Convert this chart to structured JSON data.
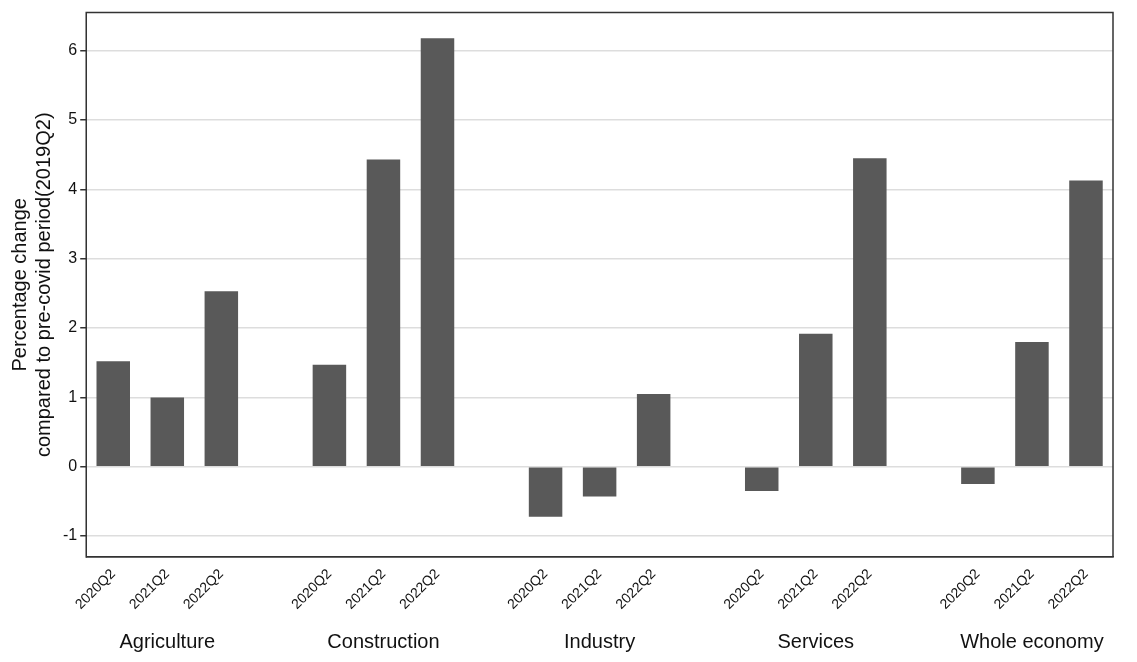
{
  "chart_data": {
    "type": "bar",
    "ylabel": "Percentage change\ncompared to pre-covid period(2019Q2)",
    "categories": [
      "2020Q2",
      "2021Q2",
      "2022Q2",
      null,
      "2020Q2",
      "2021Q2",
      "2022Q2",
      null,
      "2020Q2",
      "2021Q2",
      "2022Q2",
      null,
      "2020Q2",
      "2021Q2",
      "2022Q2",
      null,
      "2020Q2",
      "2021Q2",
      "2022Q2"
    ],
    "values": [
      1.52,
      1.0,
      2.53,
      null,
      1.47,
      4.43,
      6.18,
      null,
      -0.72,
      -0.43,
      1.05,
      null,
      -0.35,
      1.92,
      4.45,
      null,
      -0.25,
      1.8,
      4.13
    ],
    "color": "#595959",
    "annotations": [
      "Agriculture",
      "Construction",
      "Industry",
      "Services",
      "Whole economy"
    ],
    "ylim": [
      -1.3,
      6.55
    ],
    "yticks": [
      -1,
      0,
      1,
      2,
      3,
      4,
      5,
      6
    ],
    "grid": "y",
    "legend": false
  }
}
